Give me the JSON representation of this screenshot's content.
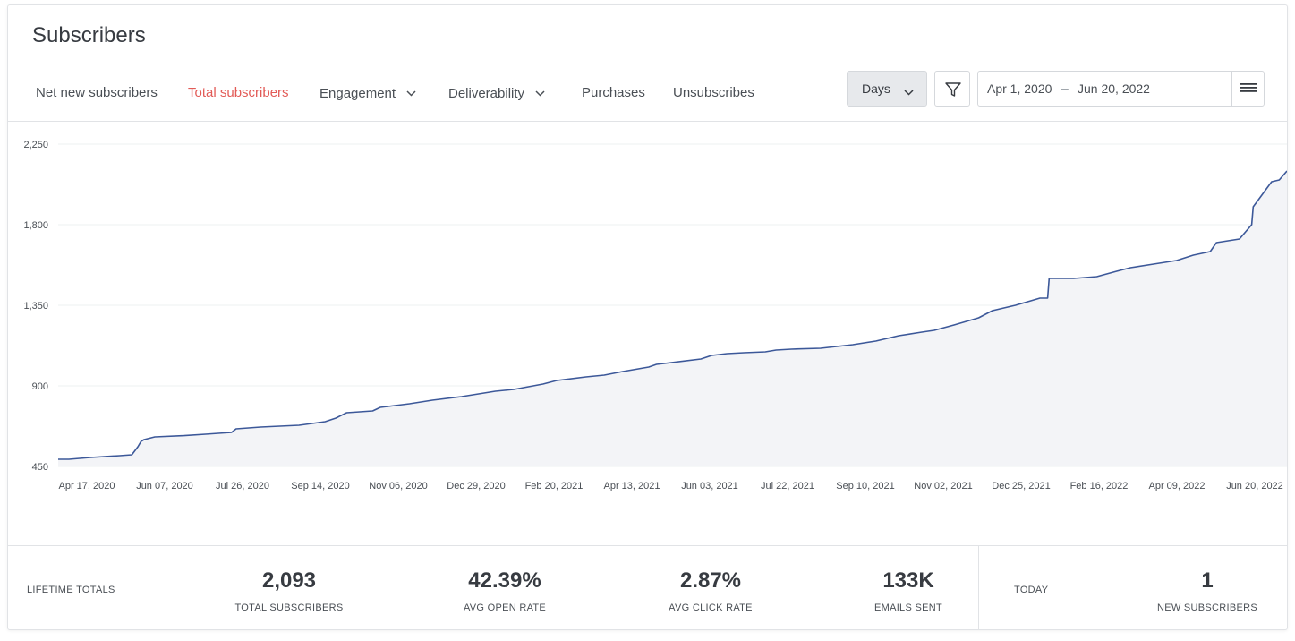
{
  "page": {
    "title": "Subscribers"
  },
  "tabs": [
    {
      "label": "Net new subscribers",
      "active": false,
      "dropdown": false
    },
    {
      "label": "Total subscribers",
      "active": true,
      "dropdown": false
    },
    {
      "label": "Engagement",
      "active": false,
      "dropdown": true
    },
    {
      "label": "Deliverability",
      "active": false,
      "dropdown": true
    },
    {
      "label": "Purchases",
      "active": false,
      "dropdown": false
    },
    {
      "label": "Unsubscribes",
      "active": false,
      "dropdown": false
    }
  ],
  "controls": {
    "interval": "Days",
    "date_start": "Apr 1, 2020",
    "date_separator": "–",
    "date_end": "Jun 20, 2022",
    "icons": [
      "chevron-down-icon",
      "filter-icon",
      "hamburger-menu-icon"
    ]
  },
  "colors": {
    "accent": "#e25b57",
    "line": "#3c5899",
    "fill": "#f3f4f7"
  },
  "chart_data": {
    "type": "area",
    "xlabel": "",
    "ylabel": "",
    "ylim": [
      450,
      2250
    ],
    "yticks": [
      2250,
      1800,
      1350,
      900,
      450
    ],
    "ytick_labels": [
      "2,250",
      "1,800",
      "1,350",
      "900",
      "450"
    ],
    "xtick_labels": [
      "Apr 17, 2020",
      "Jun 07, 2020",
      "Jul 26, 2020",
      "Sep 14, 2020",
      "Nov 06, 2020",
      "Dec 29, 2020",
      "Feb 20, 2021",
      "Apr 13, 2021",
      "Jun 03, 2021",
      "Jul 22, 2021",
      "Sep 10, 2021",
      "Nov 02, 2021",
      "Dec 25, 2021",
      "Feb 16, 2022",
      "Apr 09, 2022",
      "Jun 20, 2022"
    ],
    "series": [
      {
        "x": [
          "2020-04-10",
          "2020-04-17",
          "2020-05-01",
          "2020-05-20",
          "2020-05-28",
          "2020-06-01",
          "2020-06-03",
          "2020-06-05",
          "2020-06-12",
          "2020-07-01",
          "2020-07-15",
          "2020-08-01",
          "2020-08-04",
          "2020-08-20",
          "2020-09-14",
          "2020-10-01",
          "2020-10-08",
          "2020-10-15",
          "2020-11-01",
          "2020-11-06",
          "2020-11-25",
          "2020-12-10",
          "2020-12-29",
          "2021-01-20",
          "2021-02-01",
          "2021-02-20",
          "2021-03-01",
          "2021-03-20",
          "2021-04-01",
          "2021-04-13",
          "2021-04-30",
          "2021-05-05",
          "2021-05-10",
          "2021-06-03",
          "2021-06-10",
          "2021-06-20",
          "2021-07-01",
          "2021-07-15",
          "2021-07-22",
          "2021-08-01",
          "2021-08-20",
          "2021-09-10",
          "2021-09-25",
          "2021-10-10",
          "2021-10-25",
          "2021-11-02",
          "2021-11-15",
          "2021-12-01",
          "2021-12-10",
          "2021-12-25",
          "2022-01-10",
          "2022-01-15",
          "2022-01-16",
          "2022-02-01",
          "2022-02-16",
          "2022-03-01",
          "2022-03-10",
          "2022-03-25",
          "2022-04-09",
          "2022-04-20",
          "2022-05-01",
          "2022-05-05",
          "2022-05-20",
          "2022-05-28",
          "2022-05-29",
          "2022-06-10",
          "2022-06-15",
          "2022-06-20"
        ],
        "y": [
          490,
          490,
          500,
          510,
          515,
          560,
          590,
          600,
          615,
          622,
          630,
          640,
          660,
          670,
          680,
          700,
          720,
          750,
          760,
          780,
          800,
          820,
          840,
          870,
          880,
          910,
          930,
          950,
          960,
          980,
          1005,
          1020,
          1025,
          1050,
          1070,
          1080,
          1085,
          1090,
          1100,
          1105,
          1110,
          1130,
          1150,
          1180,
          1200,
          1210,
          1240,
          1280,
          1320,
          1350,
          1390,
          1390,
          1500,
          1500,
          1510,
          1540,
          1560,
          1580,
          1600,
          1630,
          1650,
          1700,
          1720,
          1800,
          1900,
          2040,
          2050,
          2100
        ]
      }
    ],
    "grid": true,
    "legend": "none"
  },
  "footer": {
    "lifetime_label": "LIFETIME TOTALS",
    "stats": [
      {
        "value": "2,093",
        "label": "TOTAL SUBSCRIBERS"
      },
      {
        "value": "42.39%",
        "label": "AVG OPEN RATE"
      },
      {
        "value": "2.87%",
        "label": "AVG CLICK RATE"
      },
      {
        "value": "133K",
        "label": "EMAILS SENT"
      }
    ],
    "today_label": "TODAY",
    "today_stat": {
      "value": "1",
      "label": "NEW SUBSCRIBERS"
    }
  }
}
